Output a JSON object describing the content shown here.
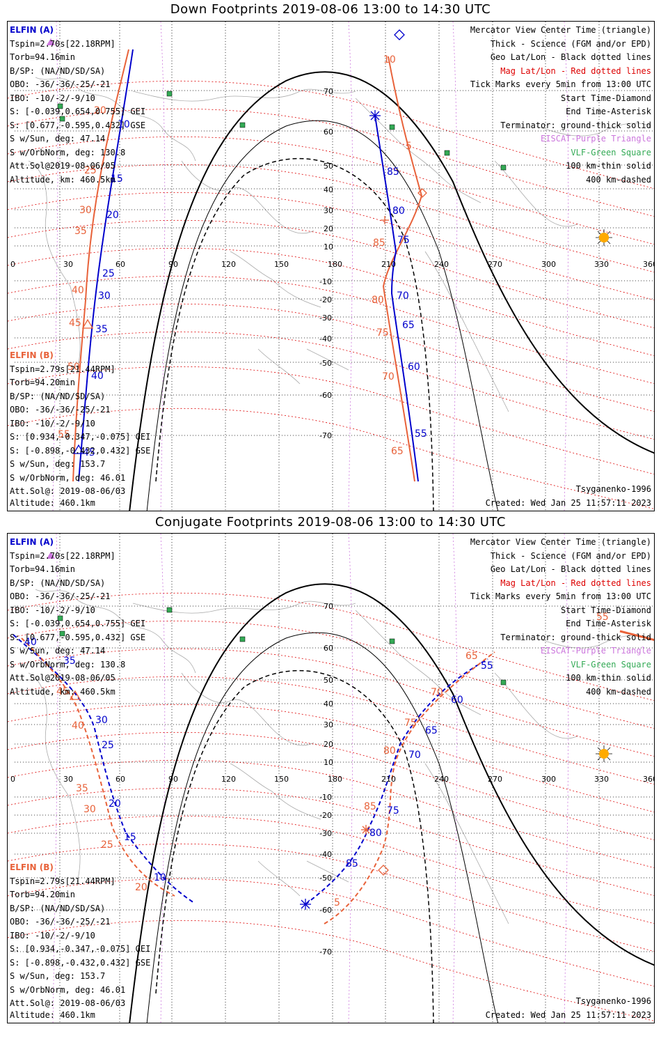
{
  "titles": {
    "down": "Down Footprints 2019-08-06 13:00 to 14:30 UTC",
    "conjugate": "Conjugate Footprints 2019-08-06 13:00 to 14:30 UTC"
  },
  "elfin_a": {
    "header": "ELFIN (A)",
    "lines": [
      "Tspin=2.70s[22.18RPM]",
      "Torb=94.16min",
      "B/SP: (NA/ND/SD/SA)",
      "OBO: -36/-36/-25/-21",
      "IBO: -10/-2/-9/10",
      "S: [-0.039,0.654,0.755] GEI",
      "S: [0.677,-0.595,0.432] GSE",
      "S w/Sun, deg: 47.14",
      "S w/OrbNorm, deg: 130.8",
      "Att.Sol@2019-08-06/05",
      "Altitude, km: 460.5km"
    ]
  },
  "elfin_b": {
    "header": "ELFIN (B)",
    "lines": [
      "Tspin=2.79s[21.44RPM]",
      "Torb=94.20min",
      "B/SP: (NA/ND/SD/SA)",
      "OBO: -36/-36/-25/-21",
      "IBO: -10/-2/-9/10",
      "S: [0.934,-0.347,-0.075] GEI",
      "S: [-0.898,-0.432,0.432] GSE",
      "S w/Sun, deg: 153.7",
      "S w/OrbNorm, deg: 46.01",
      "Att.Sol@: 2019-08-06/03",
      "Altitude: 460.1km"
    ]
  },
  "legend": {
    "l1": "Mercator View Center Time (triangle)",
    "l2": "Thick - Science (FGM and/or EPD)",
    "l3": "Geo Lat/Lon - Black dotted lines",
    "l4": "Mag Lat/Lon - Red dotted lines",
    "l5": "Tick Marks every 5min from 13:00 UTC",
    "l6": "Start Time-Diamond",
    "l7": "End Time-Asterisk",
    "l8": "Terminator: ground-thick solid",
    "l9": "EISCAT-Purple Triangle",
    "l10": "VLF-Green Square",
    "l11": "100 km-thin solid",
    "l12": "400 km-dashed"
  },
  "footer": {
    "model": "Tsyganenko-1996",
    "created": "Created: Wed Jan 25 11:57:11 2023"
  },
  "lon_ticks": [
    "0",
    "30",
    "60",
    "90",
    "120",
    "150",
    "180",
    "210",
    "240",
    "270",
    "300",
    "330",
    "360"
  ],
  "lat_ticks": [
    "70",
    "60",
    "50",
    "40",
    "30",
    "20",
    "10",
    "-10",
    "-20",
    "-30",
    "-40",
    "-50",
    "-60",
    "-70"
  ],
  "colors": {
    "elfin_a": "#0000cc",
    "elfin_b": "#e8623a",
    "terminator": "#000000",
    "mag_grid": "#dd0000",
    "geo_grid": "#000000",
    "eiscat": "#cc77dd",
    "vlf": "#33aa55",
    "sun": "#ffaa00"
  },
  "down_tracks": {
    "a_labels": [
      "10",
      "15",
      "20",
      "25",
      "30",
      "35",
      "40",
      "45",
      "85",
      "80",
      "75",
      "70",
      "65",
      "60",
      "55"
    ],
    "b_labels": [
      "20",
      "25",
      "30",
      "35",
      "40",
      "45",
      "50",
      "55",
      "10",
      "5",
      "85",
      "80",
      "75",
      "70",
      "65"
    ]
  },
  "conj_tracks": {
    "a_labels": [
      "35",
      "40",
      "30",
      "25",
      "20",
      "15",
      "10",
      "55",
      "60",
      "65",
      "70",
      "75",
      "80",
      "85"
    ],
    "b_labels": [
      "45",
      "40",
      "35",
      "30",
      "25",
      "20",
      "65",
      "70",
      "75",
      "80",
      "85",
      "5",
      "55"
    ]
  }
}
